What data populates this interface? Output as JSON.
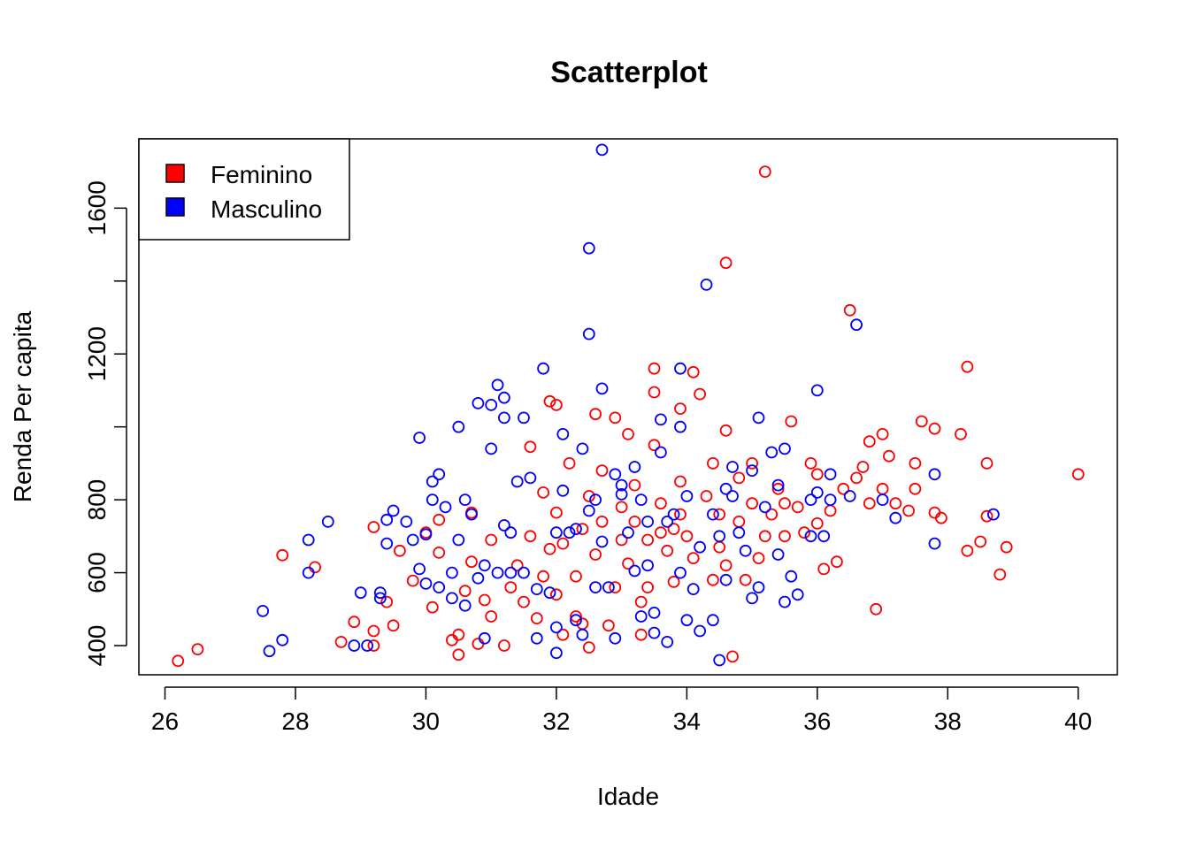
{
  "chart_data": {
    "type": "scatter",
    "title": "Scatterplot",
    "xlabel": "Idade",
    "ylabel": "Renda Per capita",
    "xlim": [
      25.6,
      40.6
    ],
    "ylim": [
      320,
      1790
    ],
    "xticks": [
      26,
      28,
      30,
      32,
      34,
      36,
      38,
      40
    ],
    "yticks": [
      400,
      600,
      800,
      1200,
      1600
    ],
    "grid": false,
    "legend_position": "top-left",
    "legend": [
      {
        "label": "Feminino",
        "color": "#ff0000"
      },
      {
        "label": "Masculino",
        "color": "#0000ff"
      }
    ],
    "series": [
      {
        "name": "Feminino",
        "color": "#ff0000",
        "points": [
          [
            26.2,
            358
          ],
          [
            26.5,
            390
          ],
          [
            27.8,
            648
          ],
          [
            28.3,
            615
          ],
          [
            28.7,
            410
          ],
          [
            28.9,
            465
          ],
          [
            29.2,
            400
          ],
          [
            29.2,
            440
          ],
          [
            29.2,
            725
          ],
          [
            29.4,
            520
          ],
          [
            29.5,
            455
          ],
          [
            29.6,
            660
          ],
          [
            29.8,
            578
          ],
          [
            30.0,
            710
          ],
          [
            30.1,
            505
          ],
          [
            30.2,
            655
          ],
          [
            30.2,
            745
          ],
          [
            30.4,
            415
          ],
          [
            30.5,
            430
          ],
          [
            30.5,
            375
          ],
          [
            30.6,
            550
          ],
          [
            30.7,
            630
          ],
          [
            30.7,
            765
          ],
          [
            30.8,
            405
          ],
          [
            30.9,
            525
          ],
          [
            31.0,
            480
          ],
          [
            31.0,
            690
          ],
          [
            31.2,
            400
          ],
          [
            31.3,
            560
          ],
          [
            31.4,
            620
          ],
          [
            31.5,
            520
          ],
          [
            31.6,
            700
          ],
          [
            31.6,
            945
          ],
          [
            31.7,
            475
          ],
          [
            31.8,
            590
          ],
          [
            31.8,
            820
          ],
          [
            31.9,
            1070
          ],
          [
            31.9,
            665
          ],
          [
            32.0,
            540
          ],
          [
            32.0,
            765
          ],
          [
            32.0,
            1060
          ],
          [
            32.1,
            430
          ],
          [
            32.1,
            680
          ],
          [
            32.2,
            900
          ],
          [
            32.3,
            480
          ],
          [
            32.3,
            590
          ],
          [
            32.4,
            460
          ],
          [
            32.4,
            720
          ],
          [
            32.5,
            810
          ],
          [
            32.5,
            395
          ],
          [
            32.6,
            1035
          ],
          [
            32.6,
            650
          ],
          [
            32.7,
            740
          ],
          [
            32.7,
            880
          ],
          [
            32.8,
            455
          ],
          [
            32.9,
            1025
          ],
          [
            32.9,
            560
          ],
          [
            33.0,
            780
          ],
          [
            33.0,
            690
          ],
          [
            33.1,
            980
          ],
          [
            33.1,
            625
          ],
          [
            33.2,
            740
          ],
          [
            33.2,
            840
          ],
          [
            33.3,
            520
          ],
          [
            33.3,
            430
          ],
          [
            33.4,
            560
          ],
          [
            33.4,
            690
          ],
          [
            33.5,
            1160
          ],
          [
            33.5,
            1095
          ],
          [
            33.5,
            950
          ],
          [
            33.6,
            710
          ],
          [
            33.6,
            790
          ],
          [
            33.7,
            660
          ],
          [
            33.8,
            575
          ],
          [
            33.8,
            720
          ],
          [
            33.9,
            850
          ],
          [
            33.9,
            760
          ],
          [
            33.9,
            1050
          ],
          [
            34.0,
            700
          ],
          [
            34.1,
            1150
          ],
          [
            34.1,
            640
          ],
          [
            34.2,
            1090
          ],
          [
            34.3,
            810
          ],
          [
            34.4,
            580
          ],
          [
            34.4,
            900
          ],
          [
            34.5,
            670
          ],
          [
            34.5,
            760
          ],
          [
            34.6,
            990
          ],
          [
            34.6,
            620
          ],
          [
            34.6,
            1450
          ],
          [
            34.7,
            370
          ],
          [
            34.8,
            860
          ],
          [
            34.8,
            740
          ],
          [
            34.9,
            580
          ],
          [
            35.0,
            900
          ],
          [
            35.0,
            790
          ],
          [
            35.1,
            640
          ],
          [
            35.2,
            1700
          ],
          [
            35.2,
            700
          ],
          [
            35.3,
            760
          ],
          [
            35.4,
            830
          ],
          [
            35.5,
            700
          ],
          [
            35.5,
            790
          ],
          [
            35.6,
            1015
          ],
          [
            35.7,
            780
          ],
          [
            35.8,
            710
          ],
          [
            35.9,
            900
          ],
          [
            36.0,
            870
          ],
          [
            36.0,
            735
          ],
          [
            36.1,
            610
          ],
          [
            36.2,
            770
          ],
          [
            36.3,
            630
          ],
          [
            36.4,
            830
          ],
          [
            36.5,
            1320
          ],
          [
            36.6,
            860
          ],
          [
            36.7,
            890
          ],
          [
            36.8,
            790
          ],
          [
            36.8,
            960
          ],
          [
            36.9,
            500
          ],
          [
            37.0,
            980
          ],
          [
            37.0,
            830
          ],
          [
            37.1,
            920
          ],
          [
            37.2,
            790
          ],
          [
            37.4,
            770
          ],
          [
            37.5,
            830
          ],
          [
            37.5,
            900
          ],
          [
            37.6,
            1015
          ],
          [
            37.8,
            995
          ],
          [
            37.8,
            765
          ],
          [
            37.9,
            750
          ],
          [
            38.2,
            980
          ],
          [
            38.3,
            1165
          ],
          [
            38.3,
            660
          ],
          [
            38.5,
            685
          ],
          [
            38.6,
            900
          ],
          [
            38.6,
            755
          ],
          [
            38.8,
            595
          ],
          [
            38.9,
            670
          ],
          [
            40.0,
            870
          ]
        ]
      },
      {
        "name": "Masculino",
        "color": "#0000ff",
        "points": [
          [
            27.5,
            495
          ],
          [
            27.6,
            385
          ],
          [
            27.8,
            415
          ],
          [
            28.2,
            690
          ],
          [
            28.2,
            600
          ],
          [
            28.5,
            740
          ],
          [
            28.9,
            400
          ],
          [
            29.0,
            545
          ],
          [
            29.1,
            400
          ],
          [
            29.3,
            545
          ],
          [
            29.3,
            530
          ],
          [
            29.4,
            680
          ],
          [
            29.4,
            745
          ],
          [
            29.5,
            770
          ],
          [
            29.7,
            740
          ],
          [
            29.8,
            690
          ],
          [
            29.9,
            610
          ],
          [
            29.9,
            970
          ],
          [
            30.0,
            570
          ],
          [
            30.0,
            705
          ],
          [
            30.1,
            800
          ],
          [
            30.1,
            850
          ],
          [
            30.2,
            870
          ],
          [
            30.2,
            560
          ],
          [
            30.3,
            780
          ],
          [
            30.4,
            600
          ],
          [
            30.4,
            530
          ],
          [
            30.5,
            690
          ],
          [
            30.5,
            1000
          ],
          [
            30.6,
            510
          ],
          [
            30.6,
            800
          ],
          [
            30.7,
            760
          ],
          [
            30.8,
            585
          ],
          [
            30.8,
            1065
          ],
          [
            30.9,
            420
          ],
          [
            30.9,
            620
          ],
          [
            31.0,
            1060
          ],
          [
            31.0,
            940
          ],
          [
            31.1,
            1115
          ],
          [
            31.1,
            600
          ],
          [
            31.2,
            1080
          ],
          [
            31.2,
            1025
          ],
          [
            31.2,
            730
          ],
          [
            31.3,
            600
          ],
          [
            31.3,
            710
          ],
          [
            31.4,
            850
          ],
          [
            31.5,
            600
          ],
          [
            31.5,
            1025
          ],
          [
            31.6,
            860
          ],
          [
            31.7,
            555
          ],
          [
            31.7,
            420
          ],
          [
            31.8,
            1160
          ],
          [
            31.9,
            545
          ],
          [
            32.0,
            710
          ],
          [
            32.0,
            450
          ],
          [
            32.0,
            380
          ],
          [
            32.1,
            825
          ],
          [
            32.1,
            980
          ],
          [
            32.2,
            710
          ],
          [
            32.3,
            720
          ],
          [
            32.3,
            470
          ],
          [
            32.4,
            430
          ],
          [
            32.4,
            940
          ],
          [
            32.5,
            1490
          ],
          [
            32.5,
            770
          ],
          [
            32.5,
            1255
          ],
          [
            32.6,
            800
          ],
          [
            32.6,
            560
          ],
          [
            32.7,
            1105
          ],
          [
            32.7,
            1760
          ],
          [
            32.7,
            685
          ],
          [
            32.8,
            560
          ],
          [
            32.9,
            420
          ],
          [
            32.9,
            870
          ],
          [
            33.0,
            840
          ],
          [
            33.0,
            815
          ],
          [
            33.1,
            710
          ],
          [
            33.2,
            605
          ],
          [
            33.2,
            890
          ],
          [
            33.3,
            480
          ],
          [
            33.3,
            800
          ],
          [
            33.4,
            620
          ],
          [
            33.4,
            740
          ],
          [
            33.5,
            435
          ],
          [
            33.5,
            490
          ],
          [
            33.6,
            1020
          ],
          [
            33.6,
            930
          ],
          [
            33.7,
            410
          ],
          [
            33.7,
            740
          ],
          [
            33.8,
            760
          ],
          [
            33.9,
            1160
          ],
          [
            33.9,
            1000
          ],
          [
            33.9,
            600
          ],
          [
            34.0,
            810
          ],
          [
            34.0,
            470
          ],
          [
            34.1,
            555
          ],
          [
            34.2,
            670
          ],
          [
            34.2,
            440
          ],
          [
            34.3,
            1390
          ],
          [
            34.4,
            760
          ],
          [
            34.4,
            470
          ],
          [
            34.5,
            700
          ],
          [
            34.5,
            360
          ],
          [
            34.6,
            830
          ],
          [
            34.6,
            580
          ],
          [
            34.7,
            810
          ],
          [
            34.7,
            890
          ],
          [
            34.8,
            710
          ],
          [
            34.9,
            660
          ],
          [
            35.0,
            530
          ],
          [
            35.0,
            880
          ],
          [
            35.1,
            1025
          ],
          [
            35.1,
            560
          ],
          [
            35.2,
            780
          ],
          [
            35.3,
            930
          ],
          [
            35.4,
            650
          ],
          [
            35.4,
            840
          ],
          [
            35.5,
            520
          ],
          [
            35.5,
            940
          ],
          [
            35.6,
            590
          ],
          [
            35.7,
            540
          ],
          [
            35.9,
            700
          ],
          [
            35.9,
            800
          ],
          [
            36.0,
            1100
          ],
          [
            36.0,
            820
          ],
          [
            36.1,
            700
          ],
          [
            36.2,
            800
          ],
          [
            36.2,
            870
          ],
          [
            36.5,
            810
          ],
          [
            36.6,
            1280
          ],
          [
            37.0,
            800
          ],
          [
            37.2,
            750
          ],
          [
            37.8,
            680
          ],
          [
            37.8,
            870
          ],
          [
            38.7,
            760
          ]
        ]
      }
    ]
  }
}
